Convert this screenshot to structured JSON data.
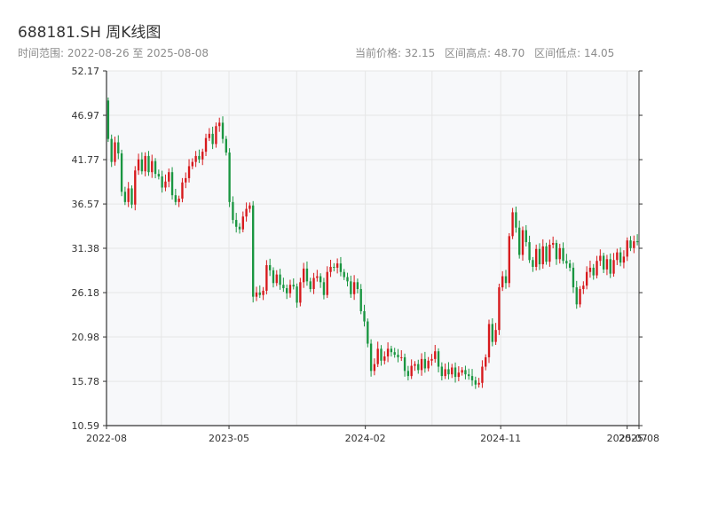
{
  "header": {
    "title": "688181.SH 周K线图",
    "date_range": "时间范围: 2022-08-26 至 2025-08-08",
    "current_price": "当前价格: 32.15",
    "range_high": "区间高点: 48.70",
    "range_low": "区间低点: 14.05"
  },
  "colors": {
    "up": "#d7191c",
    "down": "#1a9641",
    "plot_bg": "#f7f8fa",
    "grid": "#e6e6e6",
    "axis": "#333333",
    "text": "#333333",
    "subtext": "#8c8c8c"
  },
  "chart_data": {
    "type": "candlestick",
    "title": "688181.SH 周K线图",
    "frequency": "weekly",
    "x_range": [
      "2022-08-26",
      "2025-08-08"
    ],
    "x_ticks": [
      "2022-08",
      "2023-05",
      "2024-02",
      "2024-11",
      "2025-07",
      "2025-08"
    ],
    "y_ticks": [
      10.59,
      15.78,
      20.98,
      26.18,
      31.38,
      36.57,
      41.77,
      46.97,
      52.17
    ],
    "ylim": [
      10.59,
      52.17
    ],
    "grid": true,
    "close": [
      44.2,
      41.5,
      43.8,
      42.5,
      38.0,
      36.8,
      38.4,
      36.5,
      40.5,
      41.8,
      40.4,
      42.2,
      40.3,
      41.6,
      40.1,
      39.8,
      38.5,
      39.2,
      40.3,
      37.6,
      36.8,
      37.2,
      39.1,
      39.6,
      41.0,
      41.5,
      42.2,
      41.8,
      42.7,
      44.3,
      44.8,
      43.6,
      45.7,
      46.1,
      44.2,
      42.6,
      36.8,
      34.7,
      33.9,
      33.6,
      35.1,
      36.0,
      36.4,
      25.7,
      26.2,
      25.9,
      26.4,
      29.4,
      28.8,
      27.3,
      28.3,
      27.1,
      26.7,
      26.1,
      27.1,
      26.9,
      25.0,
      27.4,
      29.0,
      27.5,
      26.6,
      27.9,
      28.1,
      27.4,
      25.9,
      28.6,
      29.2,
      29.1,
      29.6,
      28.6,
      28.0,
      27.5,
      26.0,
      27.4,
      26.6,
      24.0,
      22.8,
      20.2,
      17.0,
      17.8,
      19.6,
      18.2,
      18.7,
      19.6,
      19.2,
      18.9,
      18.6,
      18.6,
      17.0,
      16.4,
      17.6,
      17.8,
      17.1,
      18.4,
      17.3,
      18.2,
      18.4,
      19.3,
      17.5,
      16.4,
      17.2,
      16.6,
      17.4,
      16.3,
      16.8,
      17.1,
      16.6,
      16.4,
      15.9,
      15.4,
      15.6,
      17.5,
      18.6,
      22.5,
      20.4,
      21.8,
      26.8,
      28.1,
      27.3,
      32.8,
      35.6,
      33.8,
      30.6,
      33.5,
      32.1,
      30.0,
      29.2,
      31.3,
      29.5,
      31.6,
      29.8,
      31.8,
      32.0,
      30.1,
      31.4,
      29.9,
      29.6,
      29.1,
      26.8,
      24.8,
      26.6,
      27.0,
      28.6,
      29.1,
      28.2,
      29.9,
      30.5,
      28.9,
      30.1,
      28.4,
      30.0,
      30.9,
      29.7,
      30.4,
      32.3,
      31.4,
      32.2,
      32.15
    ]
  },
  "axes": {
    "x_tick_labels": [
      "2022-08",
      "2023-05",
      "2024-02",
      "2024-11",
      "2025-07",
      "2025-08"
    ],
    "y_tick_labels": [
      "52.17",
      "46.97",
      "41.77",
      "36.57",
      "31.38",
      "26.18",
      "20.98",
      "15.78",
      "10.59"
    ]
  }
}
